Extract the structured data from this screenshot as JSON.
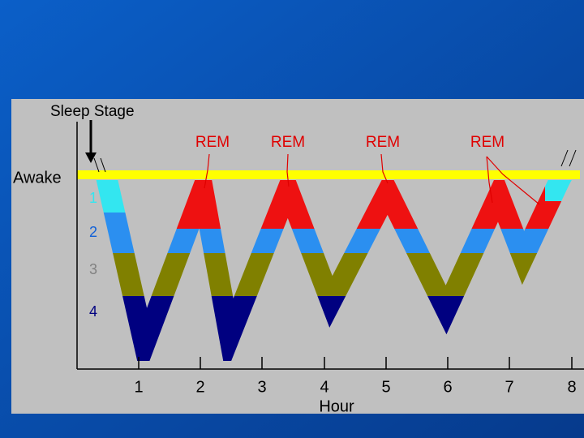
{
  "y_axis": {
    "title": "Sleep Stage",
    "labels": [
      "Awake",
      "1",
      "2",
      "3",
      "4"
    ]
  },
  "x_axis": {
    "title": "Hour",
    "ticks": [
      "1",
      "2",
      "3",
      "4",
      "5",
      "6",
      "7",
      "8"
    ]
  },
  "annotations": [
    "REM",
    "REM",
    "REM",
    "REM"
  ]
}
